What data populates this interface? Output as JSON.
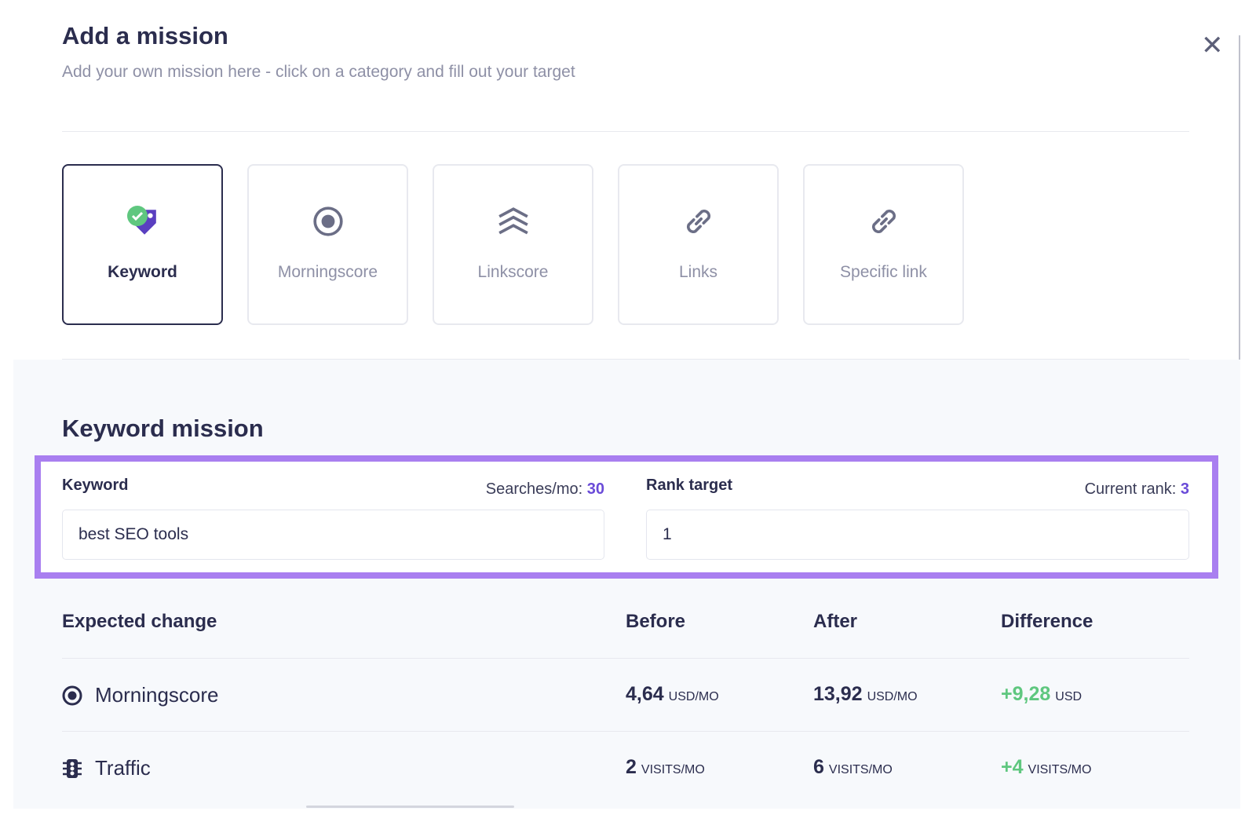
{
  "header": {
    "title": "Add a mission",
    "subtitle": "Add your own mission here - click on a category and fill out your target"
  },
  "categories": [
    {
      "label": "Keyword",
      "selected": true
    },
    {
      "label": "Morningscore",
      "selected": false
    },
    {
      "label": "Linkscore",
      "selected": false
    },
    {
      "label": "Links",
      "selected": false
    },
    {
      "label": "Specific link",
      "selected": false
    }
  ],
  "section_title": "Keyword mission",
  "form": {
    "keyword": {
      "label": "Keyword",
      "meta_label": "Searches/mo:",
      "meta_value": "30",
      "input": "best SEO tools"
    },
    "rank": {
      "label": "Rank target",
      "meta_label": "Current rank:",
      "meta_value": "3",
      "input": "1"
    }
  },
  "table": {
    "headers": [
      "Expected change",
      "Before",
      "After",
      "Difference"
    ],
    "rows": [
      {
        "label": "Morningscore",
        "before": "4,64",
        "before_unit": "USD/MO",
        "after": "13,92",
        "after_unit": "USD/MO",
        "difference": "+9,28",
        "difference_unit": "USD"
      },
      {
        "label": "Traffic",
        "before": "2",
        "before_unit": "VISITS/MO",
        "after": "6",
        "after_unit": "VISITS/MO",
        "difference": "+4",
        "difference_unit": "VISITS/MO"
      }
    ]
  }
}
